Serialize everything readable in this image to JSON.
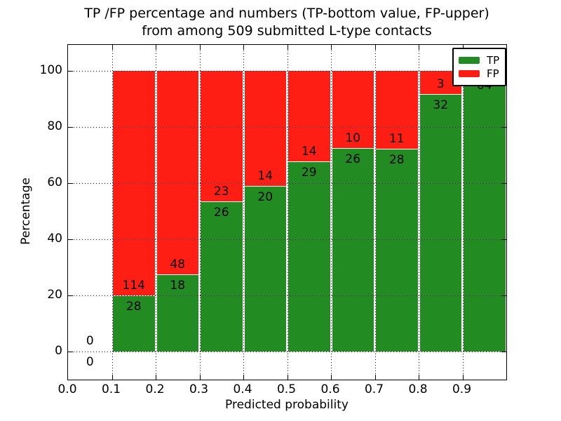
{
  "chart_data": {
    "type": "bar",
    "stacked": true,
    "title_line1": "TP /FP percentage and numbers (TP-bottom value, FP-upper)",
    "title_line2": "from among 509 submitted L-type contacts",
    "xlabel": "Predicted probability",
    "ylabel": "Percentage",
    "xlim": [
      0.0,
      1.0
    ],
    "ylim": [
      -10,
      109
    ],
    "x_ticks": [
      "0.0",
      "0.1",
      "0.2",
      "0.3",
      "0.4",
      "0.5",
      "0.6",
      "0.7",
      "0.8",
      "0.9"
    ],
    "x_tick_values": [
      0.0,
      0.1,
      0.2,
      0.3,
      0.4,
      0.5,
      0.6,
      0.7,
      0.8,
      0.9
    ],
    "y_ticks": [
      "0",
      "20",
      "40",
      "60",
      "80",
      "100"
    ],
    "y_tick_values": [
      0,
      20,
      40,
      60,
      80,
      100
    ],
    "grid": "dotted-black-both-axes",
    "colors": {
      "tp": "#228b22",
      "fp": "#ff1e14",
      "bar_edge": "#ffffff",
      "text": "#000000"
    },
    "legend": {
      "position": "upper-right",
      "entries": [
        {
          "label": "TP",
          "color": "#228b22"
        },
        {
          "label": "FP",
          "color": "#ff1e14"
        }
      ]
    },
    "bins": [
      {
        "x0": 0.0,
        "x1": 0.1,
        "tp": 0,
        "fp": 0,
        "tp_pct": 0.0,
        "has_bar": false
      },
      {
        "x0": 0.1,
        "x1": 0.2,
        "tp": 28,
        "fp": 114,
        "tp_pct": 19.7,
        "has_bar": true
      },
      {
        "x0": 0.2,
        "x1": 0.3,
        "tp": 18,
        "fp": 48,
        "tp_pct": 27.3,
        "has_bar": true
      },
      {
        "x0": 0.3,
        "x1": 0.4,
        "tp": 26,
        "fp": 23,
        "tp_pct": 53.1,
        "has_bar": true
      },
      {
        "x0": 0.4,
        "x1": 0.5,
        "tp": 20,
        "fp": 14,
        "tp_pct": 58.8,
        "has_bar": true
      },
      {
        "x0": 0.5,
        "x1": 0.6,
        "tp": 29,
        "fp": 14,
        "tp_pct": 67.4,
        "has_bar": true
      },
      {
        "x0": 0.6,
        "x1": 0.7,
        "tp": 26,
        "fp": 10,
        "tp_pct": 72.2,
        "has_bar": true
      },
      {
        "x0": 0.7,
        "x1": 0.8,
        "tp": 28,
        "fp": 11,
        "tp_pct": 71.8,
        "has_bar": true
      },
      {
        "x0": 0.8,
        "x1": 0.9,
        "tp": 32,
        "fp": 3,
        "tp_pct": 91.4,
        "has_bar": true
      },
      {
        "x0": 0.9,
        "x1": 1.0,
        "tp": 64,
        "fp": null,
        "tp_pct": 98.5,
        "has_bar": true,
        "fp_label_hidden_by_legend": true
      }
    ]
  }
}
